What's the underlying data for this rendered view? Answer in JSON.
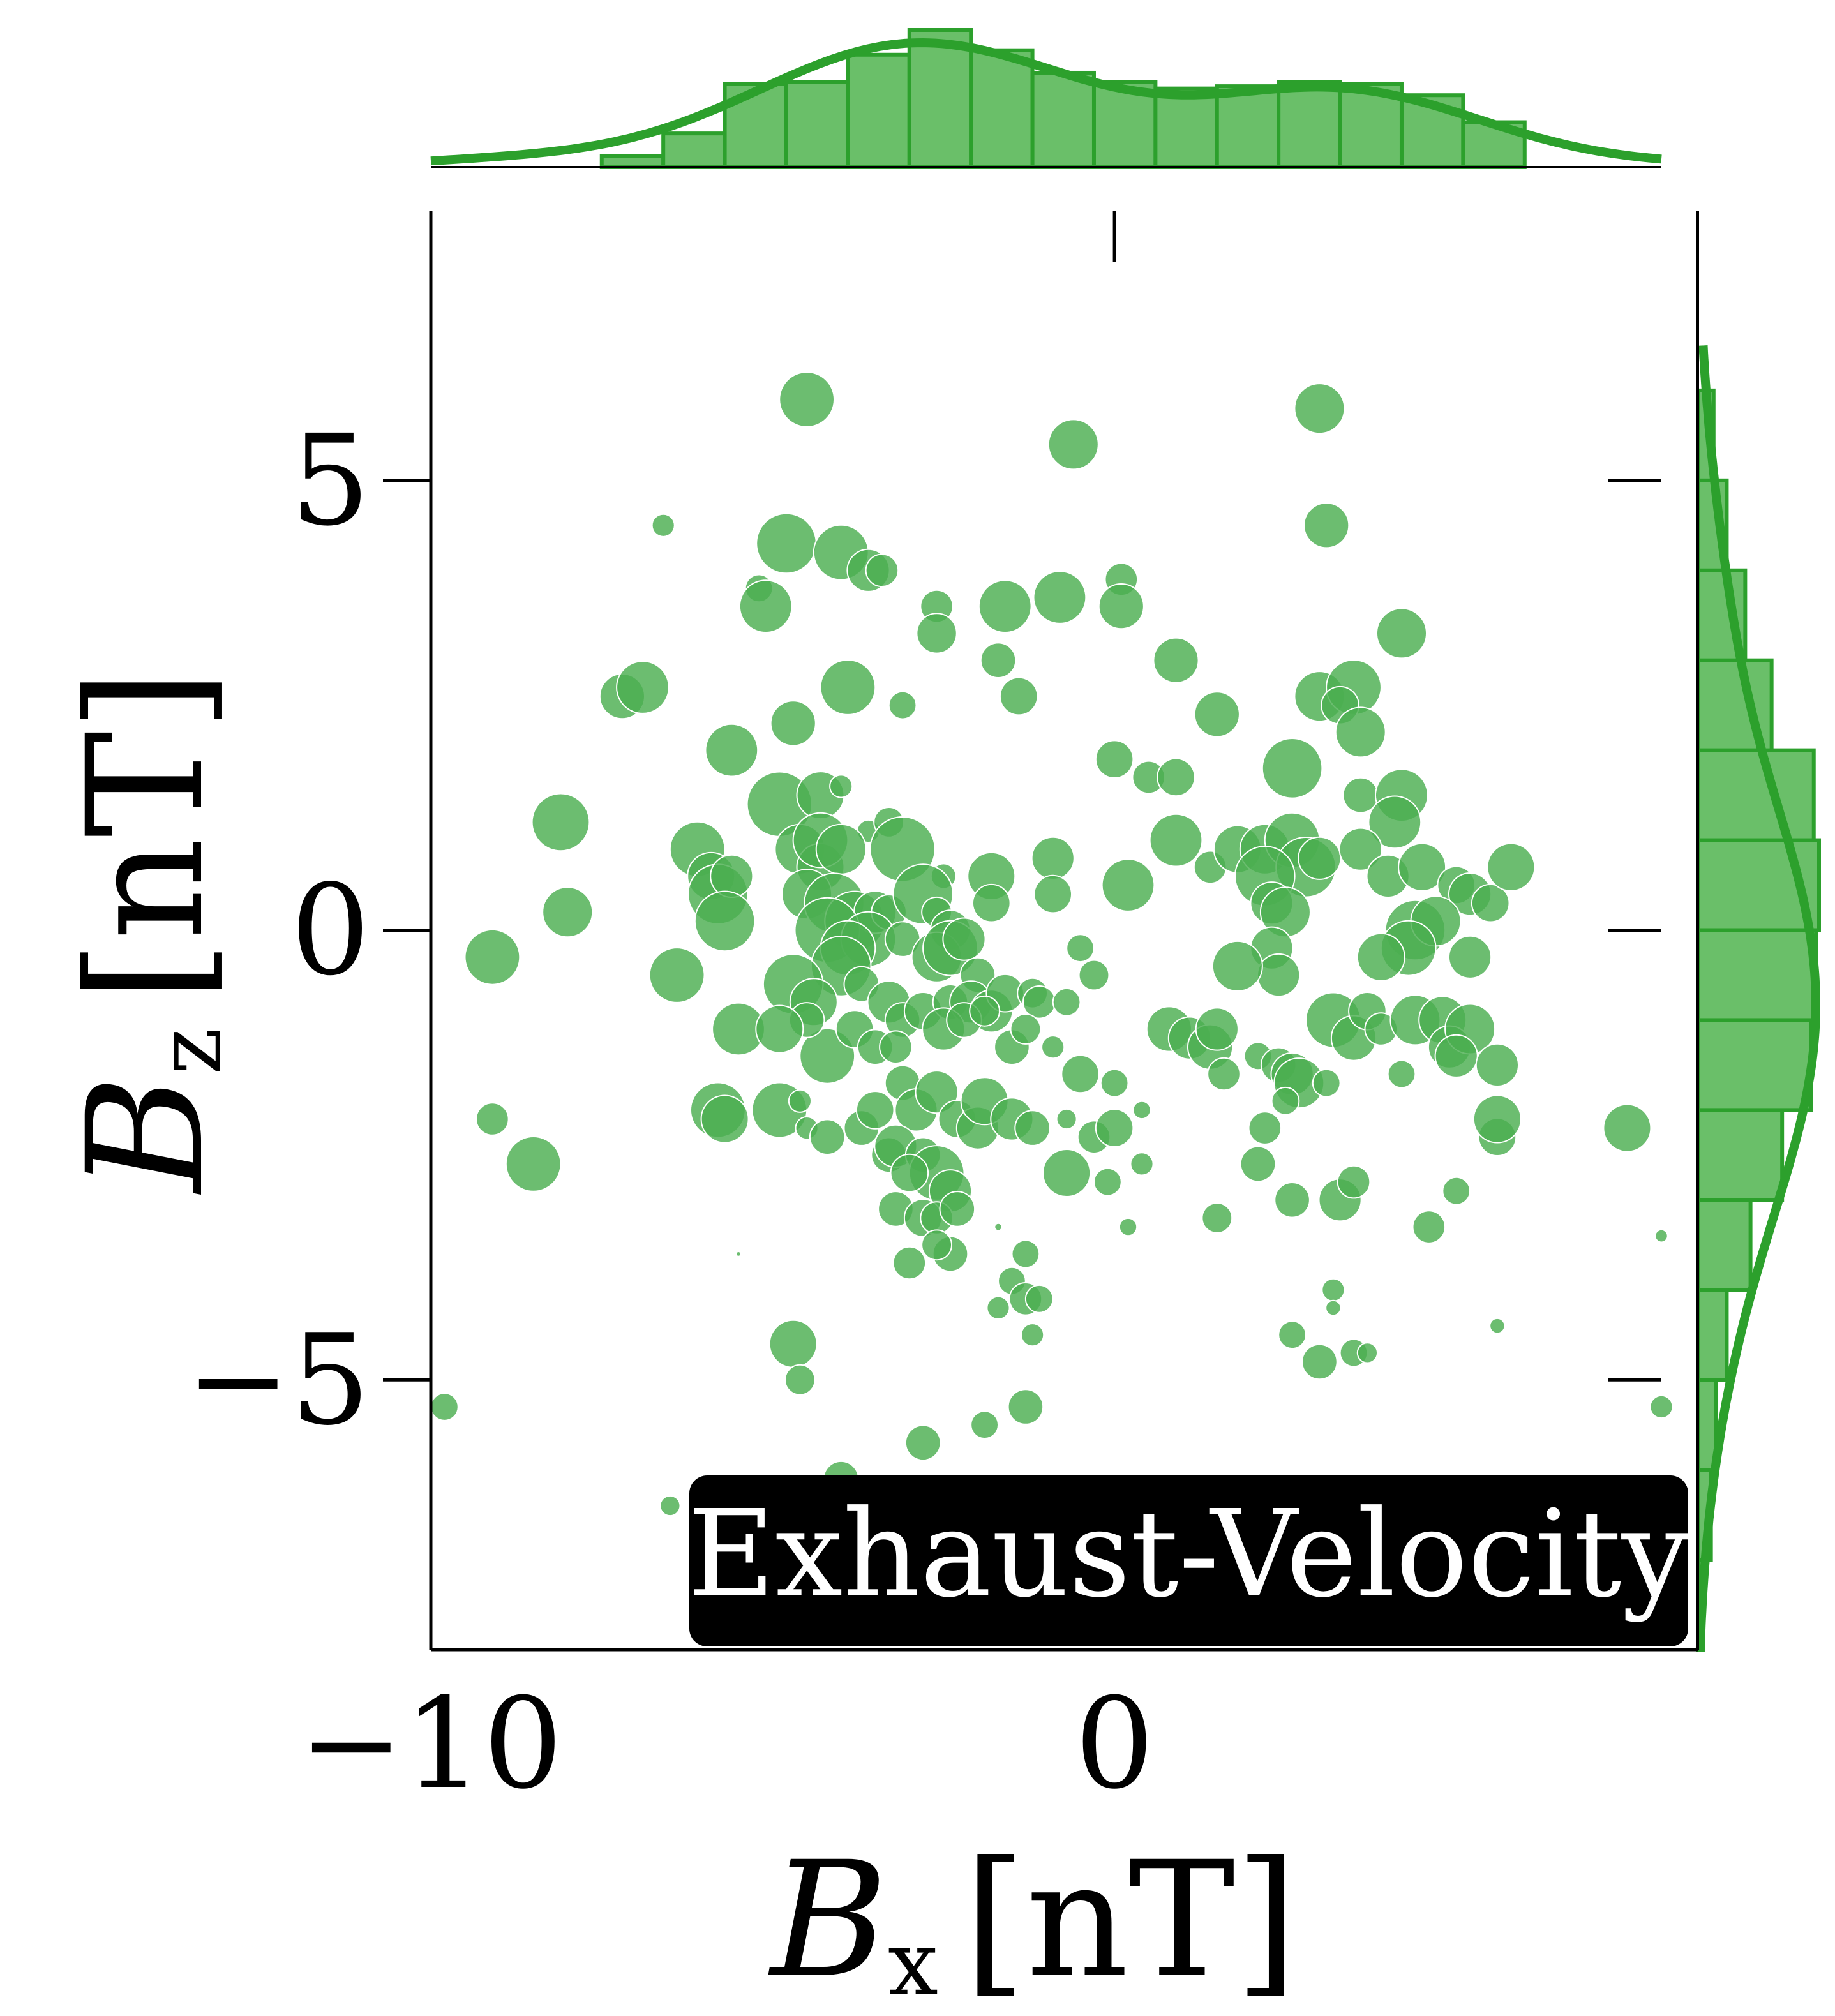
{
  "chart_data": {
    "type": "scatter",
    "badge": "Exhaust-Velocity",
    "xlabel": {
      "symbol": "B",
      "subscript": "x",
      "unit": "[nT]"
    },
    "ylabel": {
      "symbol": "B",
      "subscript": "z",
      "unit": "[nT]"
    },
    "xlim": [
      -10,
      8
    ],
    "ylim": [
      -8,
      8
    ],
    "x_ticks": [
      {
        "value": -10,
        "label": "−10"
      },
      {
        "value": 0,
        "label": "0"
      }
    ],
    "y_ticks": [
      {
        "value": 5,
        "label": "5"
      },
      {
        "value": 0,
        "label": "0"
      },
      {
        "value": -5,
        "label": "−5"
      }
    ],
    "colors": {
      "marker": "#4caf50",
      "kde": "#2ca02c",
      "hist_fill": "#6abf69",
      "badge_bg": "#000000"
    },
    "points": [
      [
        -4.5,
        5.9,
        22
      ],
      [
        3.0,
        5.8,
        20
      ],
      [
        -0.6,
        5.4,
        20
      ],
      [
        3.1,
        4.5,
        18
      ],
      [
        -6.6,
        4.5,
        9
      ],
      [
        -4.8,
        4.3,
        24
      ],
      [
        -4.0,
        4.2,
        22
      ],
      [
        -3.6,
        4.0,
        17
      ],
      [
        -3.4,
        4.0,
        13
      ],
      [
        -5.2,
        3.8,
        11
      ],
      [
        -5.1,
        3.6,
        21
      ],
      [
        -2.6,
        3.6,
        13
      ],
      [
        -1.6,
        3.6,
        21
      ],
      [
        -0.8,
        3.7,
        21
      ],
      [
        0.1,
        3.9,
        13
      ],
      [
        0.1,
        3.6,
        18
      ],
      [
        -2.6,
        3.3,
        16
      ],
      [
        -1.7,
        3.0,
        14
      ],
      [
        0.9,
        3.0,
        18
      ],
      [
        4.2,
        3.3,
        20
      ],
      [
        -7.2,
        2.6,
        18
      ],
      [
        -6.9,
        2.7,
        21
      ],
      [
        -3.9,
        2.7,
        22
      ],
      [
        -3.1,
        2.5,
        11
      ],
      [
        -1.4,
        2.6,
        15
      ],
      [
        3.0,
        2.6,
        20
      ],
      [
        3.5,
        2.7,
        22
      ],
      [
        3.3,
        2.5,
        15
      ],
      [
        3.6,
        2.2,
        20
      ],
      [
        -4.7,
        2.3,
        18
      ],
      [
        1.5,
        2.4,
        18
      ],
      [
        -5.6,
        2.0,
        21
      ],
      [
        -4.9,
        1.4,
        26
      ],
      [
        -4.3,
        1.5,
        19
      ],
      [
        -4.0,
        1.6,
        9
      ],
      [
        0,
        1.9,
        15
      ],
      [
        0.5,
        1.7,
        13
      ],
      [
        0.9,
        1.7,
        15
      ],
      [
        2.6,
        1.8,
        24
      ],
      [
        3.6,
        1.5,
        14
      ],
      [
        4.2,
        1.5,
        21
      ],
      [
        4.1,
        1.2,
        21
      ],
      [
        -8.1,
        1.2,
        23
      ],
      [
        -6.1,
        0.9,
        22
      ],
      [
        -4.6,
        0.9,
        20
      ],
      [
        -4.3,
        0.7,
        19
      ],
      [
        -3.6,
        1.1,
        9
      ],
      [
        -3.3,
        1.2,
        12
      ],
      [
        -3.1,
        0.9,
        26
      ],
      [
        -4.3,
        1.0,
        22
      ],
      [
        -4.0,
        0.9,
        20
      ],
      [
        -5.9,
        0.6,
        19
      ],
      [
        -5.8,
        0.4,
        24
      ],
      [
        -5.6,
        0.6,
        17
      ],
      [
        -2.5,
        0.6,
        10
      ],
      [
        -1.8,
        0.6,
        19
      ],
      [
        -0.9,
        0.8,
        17
      ],
      [
        -0.9,
        0.4,
        15
      ],
      [
        0.2,
        0.5,
        21
      ],
      [
        0.9,
        1.0,
        21
      ],
      [
        1.4,
        0.7,
        13
      ],
      [
        1.8,
        0.9,
        19
      ],
      [
        2.2,
        0.9,
        20
      ],
      [
        2.6,
        1.0,
        22
      ],
      [
        2.8,
        0.7,
        24
      ],
      [
        3.0,
        0.8,
        17
      ],
      [
        3.6,
        0.9,
        17
      ],
      [
        4.0,
        0.6,
        17
      ],
      [
        4.5,
        0.7,
        19
      ],
      [
        5.0,
        0.5,
        15
      ],
      [
        5.2,
        0.4,
        17
      ],
      [
        5.5,
        0.3,
        15
      ],
      [
        5.8,
        0.7,
        19
      ],
      [
        2.2,
        0.6,
        24
      ],
      [
        2.3,
        0.3,
        17
      ],
      [
        2.5,
        0.2,
        20
      ],
      [
        -8.0,
        0.2,
        20
      ],
      [
        -5.7,
        0.1,
        24
      ],
      [
        -4.5,
        0.4,
        20
      ],
      [
        -4.1,
        0.3,
        24
      ],
      [
        -3.8,
        0.1,
        24
      ],
      [
        -3.5,
        0.2,
        17
      ],
      [
        -3.3,
        0.2,
        14
      ],
      [
        -2.8,
        0.4,
        24
      ],
      [
        -2.6,
        0.2,
        12
      ],
      [
        -2.4,
        0.0,
        16
      ],
      [
        -1.8,
        0.3,
        15
      ],
      [
        -4.2,
        0.0,
        26
      ],
      [
        -3.6,
        -0.1,
        22
      ],
      [
        -3.9,
        -0.2,
        22
      ],
      [
        -4.0,
        -0.4,
        24
      ],
      [
        -3.1,
        -0.1,
        14
      ],
      [
        -2.6,
        -0.3,
        20
      ],
      [
        -2.4,
        -0.2,
        22
      ],
      [
        -2.2,
        -0.1,
        17
      ],
      [
        -2.0,
        -0.5,
        14
      ],
      [
        -0.5,
        -0.2,
        11
      ],
      [
        -0.3,
        -0.5,
        12
      ],
      [
        4.4,
        0.0,
        24
      ],
      [
        4.7,
        0.1,
        20
      ],
      [
        4.3,
        -0.2,
        22
      ],
      [
        3.9,
        -0.3,
        19
      ],
      [
        5.2,
        -0.3,
        17
      ],
      [
        2.3,
        -0.2,
        17
      ],
      [
        2.4,
        -0.5,
        17
      ],
      [
        1.8,
        -0.4,
        20
      ],
      [
        -9.1,
        -0.3,
        22
      ],
      [
        -6.4,
        -0.5,
        22
      ],
      [
        -4.7,
        -0.6,
        24
      ],
      [
        -4.4,
        -0.8,
        19
      ],
      [
        -3.7,
        -0.6,
        14
      ],
      [
        -3.3,
        -0.8,
        17
      ],
      [
        -3.1,
        -1.0,
        14
      ],
      [
        -2.8,
        -0.9,
        15
      ],
      [
        -2.4,
        -0.8,
        14
      ],
      [
        -2.1,
        -0.8,
        17
      ],
      [
        -1.8,
        -0.9,
        17
      ],
      [
        -1.6,
        -0.7,
        15
      ],
      [
        -1.2,
        -0.7,
        12
      ],
      [
        -1.1,
        -0.8,
        13
      ],
      [
        -0.7,
        -0.8,
        11
      ],
      [
        -4.2,
        -1.4,
        22
      ],
      [
        -4.5,
        -1.0,
        14
      ],
      [
        -5.5,
        -1.1,
        21
      ],
      [
        -4.9,
        -1.1,
        19
      ],
      [
        -3.8,
        -1.1,
        15
      ],
      [
        -3.5,
        -1.3,
        14
      ],
      [
        -3.2,
        -1.3,
        13
      ],
      [
        -2.5,
        -1.1,
        17
      ],
      [
        -2.2,
        -1.0,
        14
      ],
      [
        -1.9,
        -0.9,
        12
      ],
      [
        -1.5,
        -1.3,
        14
      ],
      [
        -1.3,
        -1.1,
        12
      ],
      [
        -0.9,
        -1.3,
        9
      ],
      [
        -0.5,
        -1.6,
        15
      ],
      [
        0.0,
        -1.7,
        11
      ],
      [
        0.8,
        -1.1,
        18
      ],
      [
        1.1,
        -1.2,
        17
      ],
      [
        1.4,
        -1.3,
        18
      ],
      [
        1.5,
        -1.1,
        17
      ],
      [
        1.6,
        -1.6,
        13
      ],
      [
        2.1,
        -1.4,
        11
      ],
      [
        2.4,
        -1.5,
        14
      ],
      [
        2.6,
        -1.6,
        17
      ],
      [
        2.7,
        -1.7,
        20
      ],
      [
        3.2,
        -1.0,
        22
      ],
      [
        3.5,
        -1.2,
        18
      ],
      [
        3.7,
        -0.9,
        15
      ],
      [
        3.9,
        -1.1,
        13
      ],
      [
        4.4,
        -1.0,
        20
      ],
      [
        4.8,
        -1.0,
        19
      ],
      [
        4.9,
        -1.3,
        17
      ],
      [
        5.2,
        -1.1,
        20
      ],
      [
        5.0,
        -1.4,
        17
      ],
      [
        5.6,
        -1.5,
        17
      ],
      [
        4.2,
        -1.6,
        11
      ],
      [
        3.1,
        -1.7,
        11
      ],
      [
        2.5,
        -1.9,
        11
      ],
      [
        -5.8,
        -2.0,
        22
      ],
      [
        -5.7,
        -2.1,
        19
      ],
      [
        -4.9,
        -2.0,
        22
      ],
      [
        -4.6,
        -1.9,
        9
      ],
      [
        -4.5,
        -2.2,
        9
      ],
      [
        -4.2,
        -2.3,
        14
      ],
      [
        -3.7,
        -2.2,
        14
      ],
      [
        -3.5,
        -2.0,
        15
      ],
      [
        -3.3,
        -2.5,
        14
      ],
      [
        -3.1,
        -1.7,
        14
      ],
      [
        -2.9,
        -2.0,
        17
      ],
      [
        -2.6,
        -1.8,
        17
      ],
      [
        -2.3,
        -2.1,
        15
      ],
      [
        -2.0,
        -2.2,
        17
      ],
      [
        -1.9,
        -1.9,
        19
      ],
      [
        -1.5,
        -2.1,
        17
      ],
      [
        -1.2,
        -2.2,
        14
      ],
      [
        -0.7,
        -2.1,
        8
      ],
      [
        -0.3,
        -2.3,
        13
      ],
      [
        0,
        -2.2,
        15
      ],
      [
        0.4,
        -2.0,
        7
      ],
      [
        -9.1,
        -2.1,
        13
      ],
      [
        -8.5,
        -2.6,
        22
      ],
      [
        -3.2,
        -2.4,
        17
      ],
      [
        -2.8,
        -2.5,
        14
      ],
      [
        -2.6,
        -2.7,
        22
      ],
      [
        -2.4,
        -2.9,
        17
      ],
      [
        -3.0,
        -2.7,
        15
      ],
      [
        -3.2,
        -3.1,
        14
      ],
      [
        -2.8,
        -3.2,
        15
      ],
      [
        -2.6,
        -3.2,
        13
      ],
      [
        -2.3,
        -3.1,
        14
      ],
      [
        -0.7,
        -2.7,
        19
      ],
      [
        -0.1,
        -2.8,
        11
      ],
      [
        0.4,
        -2.6,
        9
      ],
      [
        2.2,
        -2.2,
        13
      ],
      [
        2.1,
        -2.6,
        14
      ],
      [
        2.6,
        -3.0,
        14
      ],
      [
        3.3,
        -3.0,
        17
      ],
      [
        3.5,
        -2.8,
        13
      ],
      [
        4.6,
        -3.3,
        13
      ],
      [
        5.0,
        -2.9,
        11
      ],
      [
        5.6,
        -2.3,
        15
      ],
      [
        5.6,
        -2.1,
        19
      ],
      [
        7.5,
        -2.2,
        19
      ],
      [
        1.5,
        -3.2,
        12
      ],
      [
        0.2,
        -3.3,
        7
      ],
      [
        -3.0,
        -3.7,
        13
      ],
      [
        -2.4,
        -3.6,
        14
      ],
      [
        -2.6,
        -3.5,
        12
      ],
      [
        -1.3,
        -3.6,
        11
      ],
      [
        -1.5,
        -3.9,
        11
      ],
      [
        -1.3,
        -4.1,
        13
      ],
      [
        -1.1,
        -4.1,
        11
      ],
      [
        -1.7,
        -4.2,
        9
      ],
      [
        -1.2,
        -4.5,
        9
      ],
      [
        3.2,
        -4.0,
        9
      ],
      [
        3.2,
        -4.2,
        6
      ],
      [
        2.6,
        -4.5,
        11
      ],
      [
        3.0,
        -4.8,
        14
      ],
      [
        3.5,
        -4.7,
        11
      ],
      [
        3.7,
        -4.7,
        8
      ],
      [
        5.6,
        -4.4,
        6
      ],
      [
        -4.7,
        -4.6,
        19
      ],
      [
        -4.6,
        -5.0,
        12
      ],
      [
        -9.8,
        -5.3,
        11
      ],
      [
        -1.3,
        -5.3,
        14
      ],
      [
        -1.9,
        -5.5,
        11
      ],
      [
        -2.8,
        -5.7,
        14
      ],
      [
        -4.0,
        -6.1,
        14
      ],
      [
        -6.5,
        -6.4,
        8
      ],
      [
        8.0,
        -5.3,
        9
      ],
      [
        8.0,
        -3.4,
        5
      ],
      [
        -5.5,
        -3.6,
        2
      ],
      [
        -1.7,
        -3.3,
        3
      ]
    ],
    "top_hist": {
      "bins": [
        -7.5,
        -6.6,
        -5.7,
        -4.8,
        -3.9,
        -3.0,
        -2.1,
        -1.2,
        -0.3,
        0.6,
        1.5,
        2.4,
        3.3,
        4.2,
        5.1,
        6.0
      ],
      "counts": [
        5,
        15,
        37,
        38,
        50,
        61,
        52,
        42,
        38,
        35,
        36,
        38,
        37,
        32,
        20,
        8
      ]
    },
    "right_hist": {
      "bins": [
        -8,
        -7,
        -6,
        -5,
        -4,
        -3,
        -2,
        -1,
        0,
        1,
        2,
        3,
        4,
        5,
        6
      ],
      "counts": [
        2,
        5,
        7,
        11,
        20,
        32,
        43,
        45,
        46,
        44,
        28,
        18,
        11,
        6
      ]
    }
  }
}
